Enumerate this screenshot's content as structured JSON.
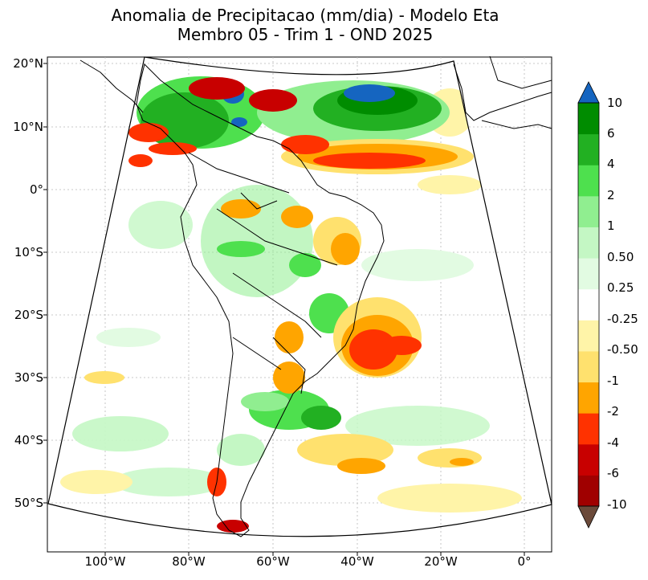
{
  "title": {
    "line1": "Anomalia de Precipitacao (mm/dia) - Modelo Eta",
    "line2": "Membro 05 - Trim 1 - OND 2025"
  },
  "map": {
    "lat_labels": [
      "20°N",
      "10°N",
      "0°",
      "10°S",
      "20°S",
      "30°S",
      "40°S",
      "50°S"
    ],
    "lon_labels": [
      "100°W",
      "80°W",
      "60°W",
      "40°W",
      "20°W",
      "0°"
    ],
    "region": "South America",
    "variable": "precipitation anomaly"
  },
  "colorbar": {
    "labels": [
      "10",
      "6",
      "4",
      "2",
      "1",
      "0.50",
      "0.25",
      "-0.25",
      "-0.50",
      "-1",
      "-2",
      "-4",
      "-6",
      "-10"
    ],
    "colors": [
      "#1565c0",
      "#008c00",
      "#22b022",
      "#4ee04e",
      "#90ee90",
      "#c4f7c4",
      "#e2fbe2",
      "#ffffff",
      "#fff4a8",
      "#ffe16e",
      "#ffa500",
      "#ff3200",
      "#c80000",
      "#a00000",
      "#6b4a3a"
    ]
  },
  "colors": {
    "positive_strong": "#008c00",
    "negative_strong": "#ff3200",
    "frame": "#000000"
  }
}
